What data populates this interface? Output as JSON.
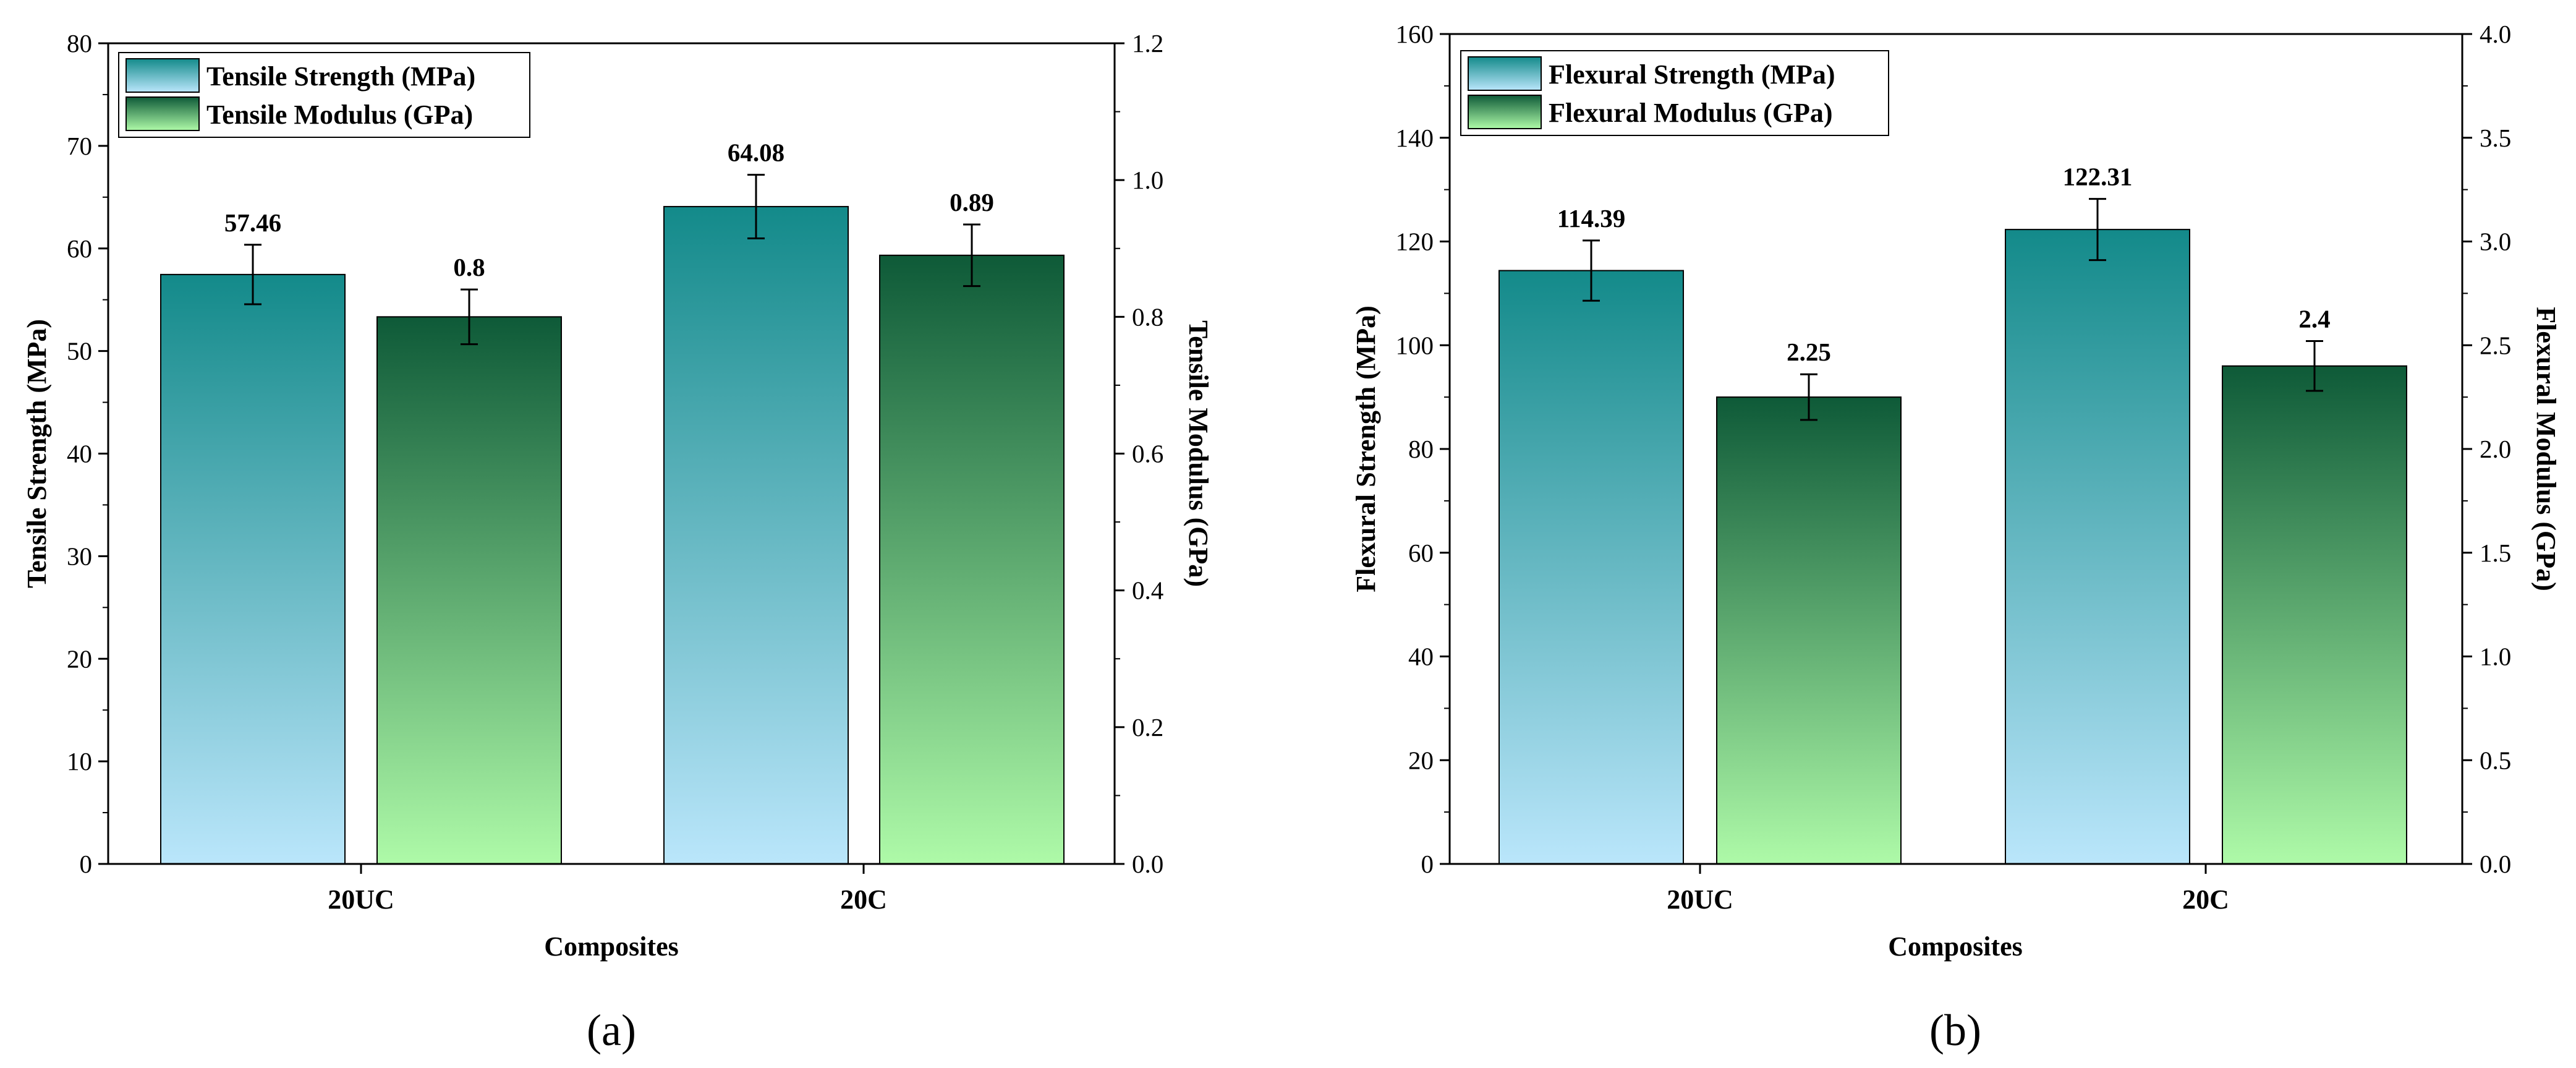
{
  "chart_data": [
    {
      "type": "bar",
      "panel_label": "(a)",
      "categories": [
        "20UC",
        "20C"
      ],
      "xlabel": "Composites",
      "y_left": {
        "label": "Tensile Strength (MPa)",
        "lim": [
          0,
          80
        ],
        "ticks": [
          0,
          10,
          20,
          30,
          40,
          50,
          60,
          70,
          80
        ],
        "tick_labels": [
          "0",
          "10",
          "20",
          "30",
          "40",
          "50",
          "60",
          "70",
          "80"
        ]
      },
      "y_right": {
        "label": "Tensile Modulus (GPa)",
        "lim": [
          0,
          1.2
        ],
        "ticks": [
          0,
          0.2,
          0.4,
          0.6,
          0.8,
          1.0,
          1.2
        ],
        "tick_labels": [
          "0.0",
          "0.2",
          "0.4",
          "0.6",
          "0.8",
          "1.0",
          "1.2"
        ]
      },
      "series": [
        {
          "name": "Tensile Strength (MPa)",
          "axis": "left",
          "values": [
            57.46,
            64.08
          ],
          "errors": [
            2.9,
            3.1
          ],
          "labels": [
            "57.46",
            "64.08"
          ],
          "color_top": "#138a8a",
          "color_bottom": "#bae6fb"
        },
        {
          "name": "Tensile Modulus (GPa)",
          "axis": "right",
          "values": [
            0.8,
            0.89
          ],
          "errors": [
            0.04,
            0.045
          ],
          "labels": [
            "0.8",
            "0.89"
          ],
          "color_top": "#0e5a38",
          "color_bottom": "#aefaa8"
        }
      ],
      "legend_position": "top-left"
    },
    {
      "type": "bar",
      "panel_label": "(b)",
      "categories": [
        "20UC",
        "20C"
      ],
      "xlabel": "Composites",
      "y_left": {
        "label": "Flexural Strength (MPa)",
        "lim": [
          0,
          160
        ],
        "ticks": [
          0,
          20,
          40,
          60,
          80,
          100,
          120,
          140,
          160
        ],
        "tick_labels": [
          "0",
          "20",
          "40",
          "60",
          "80",
          "100",
          "120",
          "140",
          "160"
        ]
      },
      "y_right": {
        "label": "Flexural Modulus (GPa)",
        "lim": [
          0,
          4.0
        ],
        "ticks": [
          0,
          0.5,
          1.0,
          1.5,
          2.0,
          2.5,
          3.0,
          3.5,
          4.0
        ],
        "tick_labels": [
          "0.0",
          "0.5",
          "1.0",
          "1.5",
          "2.0",
          "2.5",
          "3.0",
          "3.5",
          "4.0"
        ]
      },
      "series": [
        {
          "name": "Flexural Strength (MPa)",
          "axis": "left",
          "values": [
            114.39,
            122.31
          ],
          "errors": [
            5.8,
            5.9
          ],
          "labels": [
            "114.39",
            "122.31"
          ],
          "color_top": "#138a8a",
          "color_bottom": "#bae6fb"
        },
        {
          "name": "Flexural Modulus (GPa)",
          "axis": "right",
          "values": [
            2.25,
            2.4
          ],
          "errors": [
            0.11,
            0.12
          ],
          "labels": [
            "2.25",
            "2.4"
          ],
          "color_top": "#0e5a38",
          "color_bottom": "#aefaa8"
        }
      ],
      "legend_position": "top-left"
    }
  ]
}
